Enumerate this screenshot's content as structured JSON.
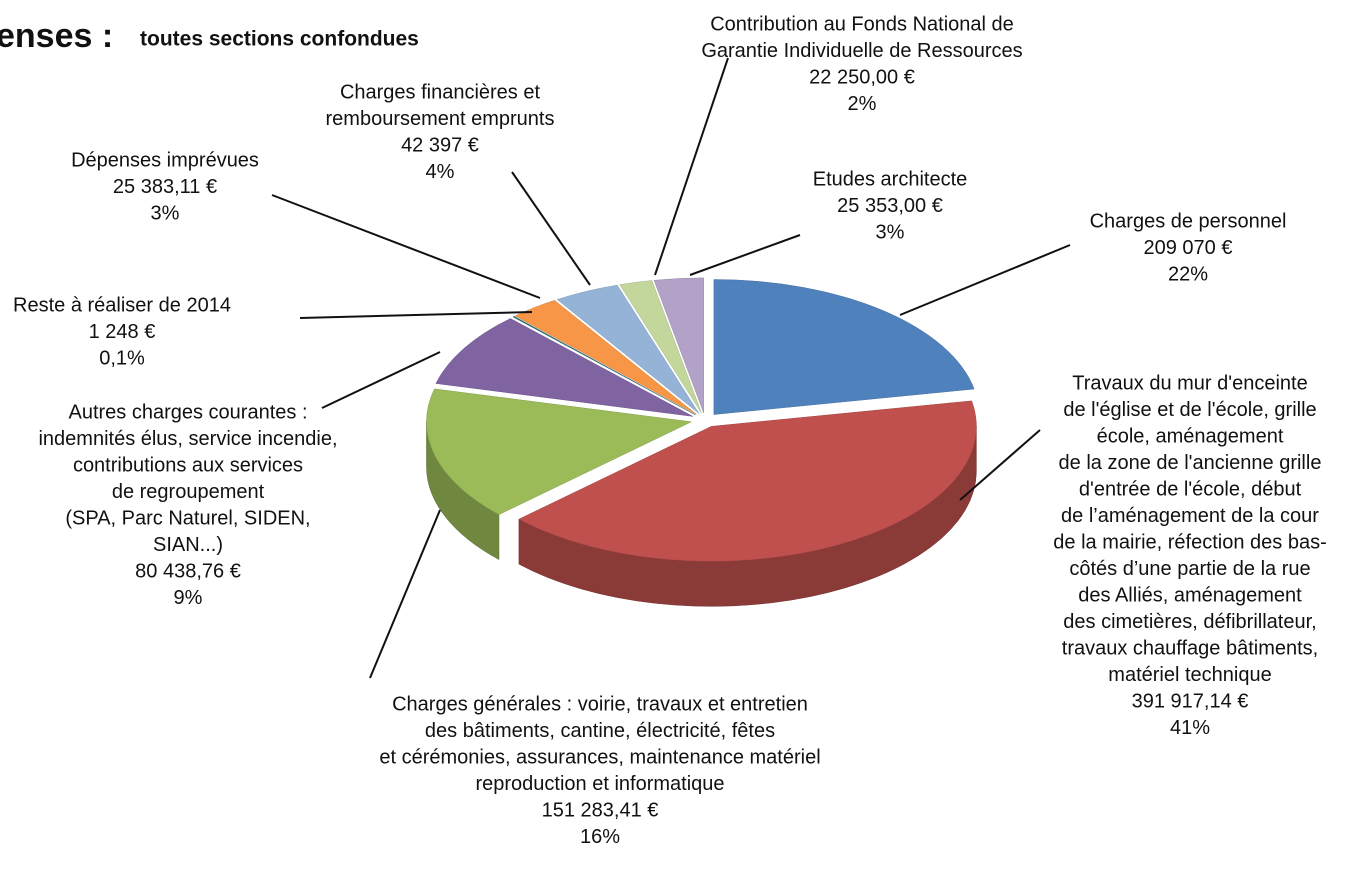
{
  "chart_data": {
    "type": "pie3d",
    "title": "enses :",
    "subtitle": "toutes sections confondues",
    "categories": [
      [
        "Charges de personnel"
      ],
      [
        "Travaux du mur d'enceinte",
        "de l'église et de l'école, grille",
        "école, aménagement",
        "de la zone de l'ancienne grille",
        "d'entrée de l'école, début",
        "de l’aménagement de la cour",
        "de la mairie, réfection des bas-",
        "côtés d’une partie de la rue",
        "des Alliés, aménagement",
        "des cimetières, défibrillateur,",
        "travaux chauffage bâtiments,",
        "matériel technique"
      ],
      [
        "Charges générales : voirie, travaux et entretien",
        "des bâtiments, cantine, électricité, fêtes",
        "et cérémonies, assurances, maintenance matériel",
        "reproduction et informatique"
      ],
      [
        "Autres charges courantes :",
        "indemnités élus, service incendie,",
        "contributions aux services",
        "de regroupement",
        "(SPA, Parc Naturel, SIDEN,",
        "SIAN...)"
      ],
      [
        "Reste à réaliser de 2014"
      ],
      [
        "Dépenses imprévues"
      ],
      [
        "Charges financières et",
        "remboursement emprunts"
      ],
      [
        "Contribution au Fonds National de",
        "Garantie Individuelle de Ressources"
      ],
      [
        "Etudes architecte"
      ]
    ],
    "values": [
      22,
      41,
      16,
      9,
      0.1,
      3,
      4,
      2,
      3
    ],
    "value_labels": [
      "22%",
      "41%",
      "16%",
      "9%",
      "0,1%",
      "3%",
      "4%",
      "2%",
      "3%"
    ],
    "amounts": [
      209070,
      391917.14,
      151283.41,
      80438.76,
      1248,
      25383.11,
      42397,
      22250,
      25353
    ],
    "amount_labels": [
      "209 070 €",
      "391 917,14 €",
      "151 283,41 €",
      "80 438,76 €",
      "1 248 €",
      "25 383,11 €",
      "42 397 €",
      "22 250,00 €",
      "25 353,00 €"
    ],
    "colors": [
      "#4f81bd",
      "#c0504d",
      "#9bbb59",
      "#8064a2",
      "#2e6e7e",
      "#f79646",
      "#95b3d7",
      "#c3d69b",
      "#b3a2c7"
    ]
  }
}
